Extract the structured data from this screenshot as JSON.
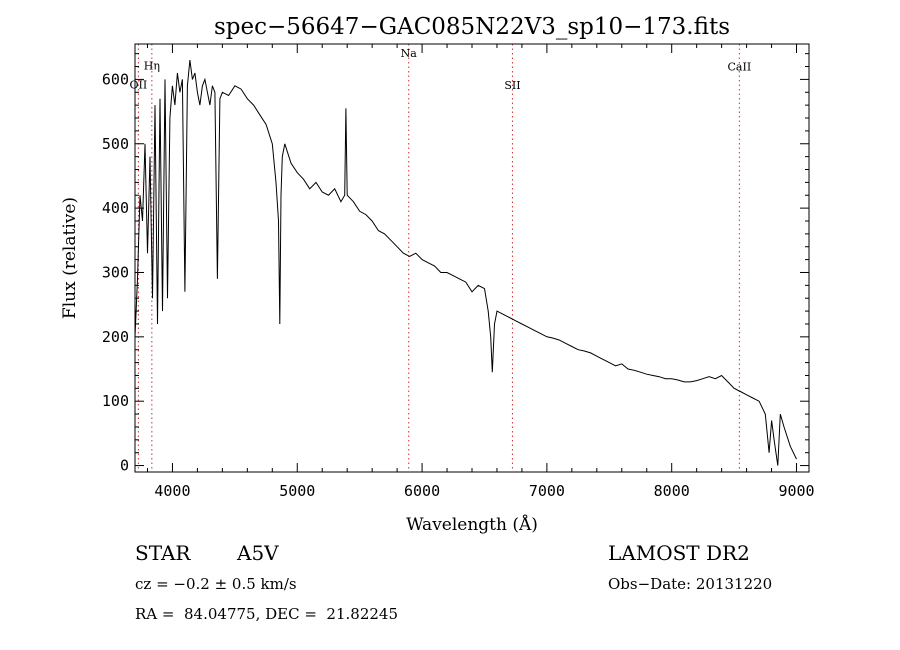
{
  "chart_data": {
    "type": "line",
    "title": "spec−56647−GAC085N22V3_sp10−173.fits",
    "xlabel": "Wavelength (Å)",
    "ylabel": "Flux (relative)",
    "xlim": [
      3700,
      9100
    ],
    "ylim": [
      -10,
      655
    ],
    "x_ticks": [
      4000,
      5000,
      6000,
      7000,
      8000,
      9000
    ],
    "y_ticks": [
      0,
      100,
      200,
      300,
      400,
      500,
      600
    ],
    "grid": false,
    "legend": "none",
    "line_color": "#000000",
    "marker_line_color": "#cc3333",
    "series": [
      {
        "x": [
          3700,
          3720,
          3740,
          3760,
          3780,
          3800,
          3820,
          3840,
          3860,
          3880,
          3900,
          3920,
          3940,
          3960,
          3980,
          4000,
          4020,
          4040,
          4060,
          4080,
          4100,
          4120,
          4140,
          4160,
          4180,
          4200,
          4220,
          4240,
          4260,
          4280,
          4300,
          4320,
          4340,
          4360,
          4380,
          4400,
          4450,
          4500,
          4550,
          4600,
          4650,
          4700,
          4750,
          4800,
          4830,
          4850,
          4860,
          4870,
          4880,
          4900,
          4950,
          5000,
          5050,
          5100,
          5150,
          5200,
          5250,
          5300,
          5350,
          5380,
          5390,
          5400,
          5450,
          5500,
          5550,
          5600,
          5650,
          5700,
          5750,
          5800,
          5850,
          5900,
          5950,
          6000,
          6050,
          6100,
          6150,
          6200,
          6250,
          6300,
          6350,
          6400,
          6450,
          6500,
          6530,
          6550,
          6563,
          6580,
          6600,
          6650,
          6700,
          6750,
          6800,
          6850,
          6900,
          6950,
          7000,
          7050,
          7100,
          7150,
          7200,
          7250,
          7300,
          7350,
          7400,
          7450,
          7500,
          7550,
          7600,
          7650,
          7700,
          7750,
          7800,
          7850,
          7900,
          7950,
          8000,
          8050,
          8100,
          8150,
          8200,
          8250,
          8300,
          8350,
          8400,
          8450,
          8500,
          8550,
          8600,
          8650,
          8700,
          8750,
          8780,
          8800,
          8820,
          8850,
          8870,
          8900,
          8950,
          9000
        ],
        "y": [
          200,
          290,
          420,
          380,
          500,
          330,
          480,
          260,
          560,
          220,
          570,
          240,
          600,
          260,
          540,
          590,
          560,
          610,
          580,
          600,
          270,
          590,
          630,
          600,
          610,
          580,
          560,
          590,
          600,
          580,
          560,
          590,
          580,
          290,
          570,
          580,
          575,
          590,
          585,
          570,
          560,
          545,
          530,
          500,
          440,
          380,
          220,
          420,
          480,
          500,
          470,
          455,
          445,
          430,
          440,
          425,
          420,
          430,
          410,
          420,
          555,
          420,
          410,
          395,
          390,
          380,
          365,
          360,
          350,
          340,
          330,
          325,
          330,
          320,
          315,
          310,
          300,
          300,
          295,
          290,
          285,
          270,
          280,
          275,
          240,
          200,
          145,
          220,
          240,
          235,
          230,
          225,
          220,
          215,
          210,
          205,
          200,
          198,
          195,
          190,
          185,
          180,
          178,
          175,
          170,
          165,
          160,
          155,
          158,
          150,
          148,
          145,
          142,
          140,
          138,
          135,
          135,
          133,
          130,
          130,
          132,
          135,
          138,
          135,
          140,
          130,
          120,
          115,
          110,
          105,
          100,
          80,
          20,
          70,
          40,
          0,
          80,
          60,
          30,
          10
        ]
      }
    ],
    "line_markers": [
      {
        "label": "Hη",
        "x": 3835,
        "label_y": 615
      },
      {
        "label": "OII",
        "x": 3727,
        "label_y": 586
      },
      {
        "label": "Na",
        "x": 5893,
        "label_y": 635
      },
      {
        "label": "SII",
        "x": 6724,
        "label_y": 585
      },
      {
        "label": "CaII",
        "x": 8542,
        "label_y": 614
      }
    ]
  },
  "info": {
    "object_class": "STAR",
    "subclass": "A5V",
    "survey": "LAMOST DR2",
    "cz_line": "cz = −0.2 ± 0.5 km/s",
    "obs_date_line": "Obs−Date: 20131220",
    "radec_line": "RA =  84.04775, DEC =  21.82245"
  }
}
